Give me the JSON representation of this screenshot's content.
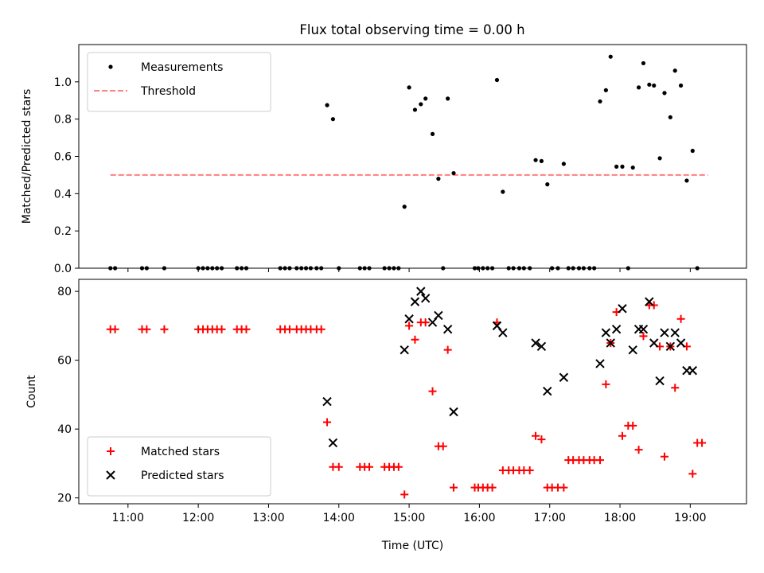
{
  "title": "Flux total observing time = 0.00 h",
  "chart_data": [
    {
      "type": "scatter",
      "ylabel": "Matched/Predicted stars",
      "xlabel": "",
      "ylim": [
        0,
        1.2
      ],
      "xlim": [
        "10:18",
        "19:48"
      ],
      "x_ticks": [
        "11:00",
        "12:00",
        "13:00",
        "14:00",
        "15:00",
        "16:00",
        "17:00",
        "18:00",
        "19:00"
      ],
      "y_ticks": [
        "0.0",
        "0.2",
        "0.4",
        "0.6",
        "0.8",
        "1.0"
      ],
      "legend": {
        "position": "top-left",
        "entries": [
          "Measurements",
          "Threshold"
        ]
      },
      "threshold": {
        "name": "Threshold",
        "value": 0.5,
        "x_range": [
          "10:45",
          "19:15"
        ],
        "color": "#ff7f7f"
      },
      "series": [
        {
          "name": "Measurements",
          "marker": "dot",
          "color": "#000000",
          "points": [
            [
              "10:45",
              0
            ],
            [
              "10:49",
              0
            ],
            [
              "11:12",
              0
            ],
            [
              "11:16",
              0
            ],
            [
              "11:31",
              0
            ],
            [
              "12:00",
              0
            ],
            [
              "12:04",
              0
            ],
            [
              "12:08",
              0
            ],
            [
              "12:12",
              0
            ],
            [
              "12:16",
              0
            ],
            [
              "12:20",
              0
            ],
            [
              "12:33",
              0
            ],
            [
              "12:37",
              0
            ],
            [
              "12:41",
              0
            ],
            [
              "13:10",
              0
            ],
            [
              "13:14",
              0
            ],
            [
              "13:18",
              0
            ],
            [
              "13:24",
              0
            ],
            [
              "13:28",
              0
            ],
            [
              "13:32",
              0
            ],
            [
              "13:36",
              0
            ],
            [
              "13:41",
              0
            ],
            [
              "13:45",
              0
            ],
            [
              "13:50",
              0.875
            ],
            [
              "13:55",
              0.8
            ],
            [
              "14:00",
              0
            ],
            [
              "14:18",
              0
            ],
            [
              "14:22",
              0
            ],
            [
              "14:26",
              0
            ],
            [
              "14:39",
              0
            ],
            [
              "14:43",
              0
            ],
            [
              "14:47",
              0
            ],
            [
              "14:51",
              0
            ],
            [
              "14:56",
              0.33
            ],
            [
              "15:00",
              0.97
            ],
            [
              "15:05",
              0.85
            ],
            [
              "15:10",
              0.88
            ],
            [
              "15:14",
              0.91
            ],
            [
              "15:20",
              0.72
            ],
            [
              "15:25",
              0.48
            ],
            [
              "15:29",
              0
            ],
            [
              "15:33",
              0.91
            ],
            [
              "15:38",
              0.51
            ],
            [
              "15:56",
              0
            ],
            [
              "15:59",
              0
            ],
            [
              "16:03",
              0
            ],
            [
              "16:07",
              0
            ],
            [
              "16:11",
              0
            ],
            [
              "16:15",
              1.01
            ],
            [
              "16:20",
              0.41
            ],
            [
              "16:25",
              0
            ],
            [
              "16:29",
              0
            ],
            [
              "16:34",
              0
            ],
            [
              "16:38",
              0
            ],
            [
              "16:43",
              0
            ],
            [
              "16:48",
              0.58
            ],
            [
              "16:53",
              0.575
            ],
            [
              "16:58",
              0.45
            ],
            [
              "17:02",
              0
            ],
            [
              "17:07",
              0
            ],
            [
              "17:12",
              0.56
            ],
            [
              "17:16",
              0
            ],
            [
              "17:20",
              0
            ],
            [
              "17:25",
              0
            ],
            [
              "17:29",
              0
            ],
            [
              "17:34",
              0
            ],
            [
              "17:38",
              0
            ],
            [
              "17:43",
              0.895
            ],
            [
              "17:48",
              0.955
            ],
            [
              "17:52",
              1.135
            ],
            [
              "17:57",
              0.545
            ],
            [
              "18:02",
              0.545
            ],
            [
              "18:07",
              0
            ],
            [
              "18:11",
              0.54
            ],
            [
              "18:16",
              0.97
            ],
            [
              "18:20",
              1.1
            ],
            [
              "18:25",
              0.985
            ],
            [
              "18:29",
              0.98
            ],
            [
              "18:34",
              0.59
            ],
            [
              "18:38",
              0.94
            ],
            [
              "18:43",
              0.81
            ],
            [
              "18:47",
              1.06
            ],
            [
              "18:52",
              0.98
            ],
            [
              "18:57",
              0.47
            ],
            [
              "19:02",
              0.63
            ],
            [
              "19:06",
              0
            ]
          ]
        }
      ]
    },
    {
      "type": "scatter",
      "xlabel": "Time (UTC)",
      "ylabel": "Count",
      "ylim": [
        18.3,
        83.5
      ],
      "xlim": [
        "10:18",
        "19:48"
      ],
      "x_ticks": [
        "11:00",
        "12:00",
        "13:00",
        "14:00",
        "15:00",
        "16:00",
        "17:00",
        "18:00",
        "19:00"
      ],
      "y_ticks": [
        "20",
        "40",
        "60",
        "80"
      ],
      "legend": {
        "position": "bottom-left",
        "entries": [
          "Matched stars",
          "Predicted stars"
        ]
      },
      "series": [
        {
          "name": "Matched stars",
          "marker": "plus",
          "color": "#ff0000",
          "points": [
            [
              "10:45",
              69
            ],
            [
              "10:49",
              69
            ],
            [
              "11:12",
              69
            ],
            [
              "11:16",
              69
            ],
            [
              "11:31",
              69
            ],
            [
              "12:00",
              69
            ],
            [
              "12:04",
              69
            ],
            [
              "12:08",
              69
            ],
            [
              "12:12",
              69
            ],
            [
              "12:16",
              69
            ],
            [
              "12:20",
              69
            ],
            [
              "12:33",
              69
            ],
            [
              "12:37",
              69
            ],
            [
              "12:41",
              69
            ],
            [
              "13:10",
              69
            ],
            [
              "13:14",
              69
            ],
            [
              "13:18",
              69
            ],
            [
              "13:24",
              69
            ],
            [
              "13:28",
              69
            ],
            [
              "13:32",
              69
            ],
            [
              "13:36",
              69
            ],
            [
              "13:41",
              69
            ],
            [
              "13:45",
              69
            ],
            [
              "13:50",
              42
            ],
            [
              "13:55",
              29
            ],
            [
              "14:00",
              29
            ],
            [
              "14:18",
              29
            ],
            [
              "14:22",
              29
            ],
            [
              "14:26",
              29
            ],
            [
              "14:39",
              29
            ],
            [
              "14:43",
              29
            ],
            [
              "14:47",
              29
            ],
            [
              "14:51",
              29
            ],
            [
              "14:56",
              21
            ],
            [
              "15:00",
              70
            ],
            [
              "15:05",
              66
            ],
            [
              "15:10",
              71
            ],
            [
              "15:14",
              71
            ],
            [
              "15:20",
              51
            ],
            [
              "15:25",
              35
            ],
            [
              "15:29",
              35
            ],
            [
              "15:33",
              63
            ],
            [
              "15:38",
              23
            ],
            [
              "15:56",
              23
            ],
            [
              "15:59",
              23
            ],
            [
              "16:03",
              23
            ],
            [
              "16:07",
              23
            ],
            [
              "16:11",
              23
            ],
            [
              "16:15",
              71
            ],
            [
              "16:20",
              28
            ],
            [
              "16:25",
              28
            ],
            [
              "16:29",
              28
            ],
            [
              "16:34",
              28
            ],
            [
              "16:38",
              28
            ],
            [
              "16:43",
              28
            ],
            [
              "16:48",
              38
            ],
            [
              "16:53",
              37
            ],
            [
              "16:58",
              23
            ],
            [
              "17:02",
              23
            ],
            [
              "17:07",
              23
            ],
            [
              "17:12",
              23
            ],
            [
              "17:16",
              31
            ],
            [
              "17:20",
              31
            ],
            [
              "17:25",
              31
            ],
            [
              "17:29",
              31
            ],
            [
              "17:34",
              31
            ],
            [
              "17:38",
              31
            ],
            [
              "17:43",
              31
            ],
            [
              "17:48",
              53
            ],
            [
              "17:52",
              65
            ],
            [
              "17:57",
              74
            ],
            [
              "18:02",
              38
            ],
            [
              "18:07",
              41
            ],
            [
              "18:11",
              41
            ],
            [
              "18:16",
              34
            ],
            [
              "18:20",
              67
            ],
            [
              "18:25",
              76
            ],
            [
              "18:29",
              76
            ],
            [
              "18:34",
              64
            ],
            [
              "18:38",
              32
            ],
            [
              "18:43",
              64
            ],
            [
              "18:47",
              52
            ],
            [
              "18:52",
              72
            ],
            [
              "18:57",
              64
            ],
            [
              "19:02",
              27
            ],
            [
              "19:06",
              36
            ],
            [
              "19:10",
              36
            ]
          ]
        },
        {
          "name": "Predicted stars",
          "marker": "x",
          "color": "#000000",
          "points": [
            [
              "13:50",
              48
            ],
            [
              "13:55",
              36
            ],
            [
              "14:56",
              63
            ],
            [
              "15:00",
              72
            ],
            [
              "15:05",
              77
            ],
            [
              "15:10",
              80
            ],
            [
              "15:14",
              78
            ],
            [
              "15:20",
              71
            ],
            [
              "15:25",
              73
            ],
            [
              "15:33",
              69
            ],
            [
              "15:38",
              45
            ],
            [
              "16:15",
              70
            ],
            [
              "16:20",
              68
            ],
            [
              "16:48",
              65
            ],
            [
              "16:53",
              64
            ],
            [
              "16:58",
              51
            ],
            [
              "17:12",
              55
            ],
            [
              "17:43",
              59
            ],
            [
              "17:48",
              68
            ],
            [
              "17:52",
              65
            ],
            [
              "17:57",
              69
            ],
            [
              "18:02",
              75
            ],
            [
              "18:11",
              63
            ],
            [
              "18:16",
              69
            ],
            [
              "18:20",
              69
            ],
            [
              "18:25",
              77
            ],
            [
              "18:29",
              65
            ],
            [
              "18:34",
              54
            ],
            [
              "18:38",
              68
            ],
            [
              "18:43",
              64
            ],
            [
              "18:47",
              68
            ],
            [
              "18:52",
              65
            ],
            [
              "18:57",
              57
            ],
            [
              "19:02",
              57
            ]
          ]
        }
      ]
    }
  ]
}
